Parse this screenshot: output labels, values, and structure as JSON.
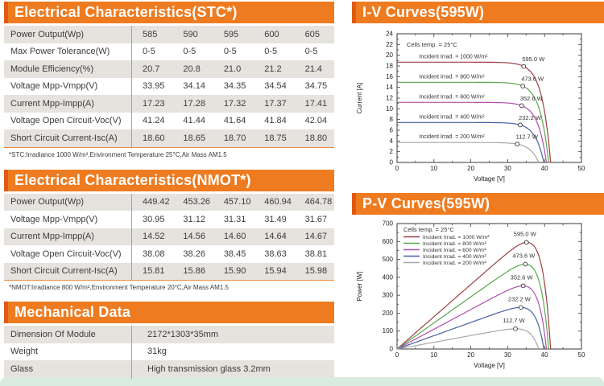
{
  "tables": {
    "stc": {
      "title": "Electrical Characteristics(STC*)",
      "rows": [
        {
          "label": "Power Output(Wp)",
          "values": [
            "585",
            "590",
            "595",
            "600",
            "605"
          ]
        },
        {
          "label": "Max Power Tolerance(W)",
          "values": [
            "0-5",
            "0-5",
            "0-5",
            "0-5",
            "0-5"
          ]
        },
        {
          "label": "Module Efficiency(%)",
          "values": [
            "20.7",
            "20.8",
            "21.0",
            "21.2",
            "21.4"
          ]
        },
        {
          "label": "Voltage Mpp-Vmpp(V)",
          "values": [
            "33.95",
            "34.14",
            "34.35",
            "34.54",
            "34.75"
          ]
        },
        {
          "label": "Current Mpp-Impp(A)",
          "values": [
            "17.23",
            "17.28",
            "17.32",
            "17.37",
            "17.41"
          ]
        },
        {
          "label": "Voltage Open Circuit-Voc(V)",
          "values": [
            "41.24",
            "41.44",
            "41.64",
            "41.84",
            "42.04"
          ]
        },
        {
          "label": "Short Circuit Current-Isc(A)",
          "values": [
            "18.60",
            "18.65",
            "18.70",
            "18.75",
            "18.80"
          ]
        }
      ],
      "footnote": "*STC:Irradiance 1000 W/m²,Environment Temperature 25°C,Air Mass AM1.5"
    },
    "nmot": {
      "title": "Electrical Characteristics(NMOT*)",
      "rows": [
        {
          "label": "Power Output(Wp)",
          "values": [
            "449.42",
            "453.26",
            "457.10",
            "460.94",
            "464.78"
          ]
        },
        {
          "label": "Voltage Mpp-Vmpp(V)",
          "values": [
            "30.95",
            "31.12",
            "31.31",
            "31.49",
            "31.67"
          ]
        },
        {
          "label": "Current Mpp-Impp(A)",
          "values": [
            "14.52",
            "14.56",
            "14.60",
            "14.64",
            "14.67"
          ]
        },
        {
          "label": "Voltage Open Circuit-Voc(V)",
          "values": [
            "38.08",
            "38.26",
            "38.45",
            "38.63",
            "38.81"
          ]
        },
        {
          "label": "Short Circuit Current-Isc(A)",
          "values": [
            "15.81",
            "15.86",
            "15.90",
            "15.94",
            "15.98"
          ]
        }
      ],
      "footnote": "*NMOT:Irradiance 800 W/m²,Environment Temperature 20°C,Air Mass AM1.5"
    },
    "mechanical": {
      "title": "Mechanical Data",
      "rows": [
        {
          "label": "Dimension Of Module",
          "value": "2172*1303*35mm"
        },
        {
          "label": "Weight",
          "value": "31kg"
        },
        {
          "label": "Glass",
          "value": "High transmission glass 3.2mm"
        }
      ]
    }
  },
  "accent_colors": {
    "header_orange": "#ee7b20",
    "header_edge_orange": "#e05a10",
    "divider_orange": "#f08c3a",
    "row_gray": "#e6e2de",
    "bottom_band_green": "#d9ecdf"
  },
  "chart_data": [
    {
      "type": "line",
      "title": "I-V Curves(595W)",
      "xlabel": "Voltage [V]",
      "ylabel": "Current [A]",
      "xlim": [
        0,
        50
      ],
      "ylim": [
        0,
        24
      ],
      "xtick_major": 10,
      "xtick_minor": 5,
      "ytick_major": 2,
      "ytick_minor": 1,
      "grid": "off",
      "annotation": "Cells temp. = 25°C",
      "series": [
        {
          "name": "Incident Irrad. = 1000 W/m²",
          "color": "#9e3f3f",
          "isc": 18.7,
          "voc": 41.64,
          "vmpp": 34.35,
          "impp": 17.32,
          "pmax": 595.0,
          "pmax_label": "595.0 W"
        },
        {
          "name": "Incident Irrad. = 800 W/m²",
          "color": "#58a84b",
          "isc": 14.95,
          "voc": 41.1,
          "vmpp": 34.1,
          "impp": 13.85,
          "pmax": 473.6,
          "pmax_label": "473.6 W"
        },
        {
          "name": "Incident Irrad. = 600 W/m²",
          "color": "#b04fae",
          "isc": 11.2,
          "voc": 40.5,
          "vmpp": 33.8,
          "impp": 10.4,
          "pmax": 352.6,
          "pmax_label": "352.6 W"
        },
        {
          "name": "Incident Irrad. = 400 W/m²",
          "color": "#4a5fa5",
          "isc": 7.45,
          "voc": 39.8,
          "vmpp": 33.4,
          "impp": 6.95,
          "pmax": 232.2,
          "pmax_label": "232.2 W"
        },
        {
          "name": "Incident Irrad. = 200 W/m²",
          "color": "#a8a8a8",
          "isc": 3.72,
          "voc": 38.4,
          "vmpp": 32.6,
          "impp": 3.46,
          "pmax": 112.7,
          "pmax_label": "112.7 W"
        }
      ]
    },
    {
      "type": "line",
      "title": "P-V Curves(595W)",
      "xlabel": "Voltage [V]",
      "ylabel": "Power [W]",
      "xlim": [
        0,
        50
      ],
      "ylim": [
        0,
        700
      ],
      "xtick_major": 10,
      "xtick_minor": 5,
      "ytick_major": 100,
      "ytick_minor": 50,
      "grid": "off",
      "annotation": "Cells temp. = 25°C",
      "legend_position": "top-left",
      "series": [
        {
          "name": "Incident Irrad. = 1000 W/m²",
          "color": "#9e3f3f",
          "isc": 18.7,
          "voc": 41.64,
          "vmpp": 34.35,
          "pmax": 595.0,
          "pmax_label": "595.0 W"
        },
        {
          "name": "Incident Irrad. = 800 W/m²",
          "color": "#58a84b",
          "isc": 14.95,
          "voc": 41.1,
          "vmpp": 34.1,
          "pmax": 473.6,
          "pmax_label": "473.6 W"
        },
        {
          "name": "Incident Irrad. = 600 W/m²",
          "color": "#b04fae",
          "isc": 11.2,
          "voc": 40.5,
          "vmpp": 33.8,
          "pmax": 352.6,
          "pmax_label": "352.6 W"
        },
        {
          "name": "Incident Irrad. = 400 W/m²",
          "color": "#4a5fa5",
          "isc": 7.45,
          "voc": 39.8,
          "vmpp": 33.4,
          "pmax": 232.2,
          "pmax_label": "232.2 W"
        },
        {
          "name": "Incident Irrad. = 200 W/m²",
          "color": "#a8a8a8",
          "isc": 3.72,
          "voc": 38.4,
          "vmpp": 32.6,
          "pmax": 112.7,
          "pmax_label": "112.7 W"
        }
      ]
    }
  ]
}
